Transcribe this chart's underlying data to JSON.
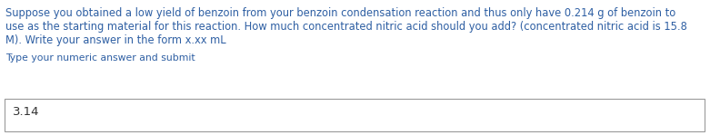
{
  "question_text_line1": "Suppose you obtained a low yield of benzoin from your benzoin condensation reaction and thus only have 0.214 g of benzoin to",
  "question_text_line2": "use as the starting material for this reaction. How much concentrated nitric acid should you add? (concentrated nitric acid is 15.8",
  "question_text_line3": "M). Write your answer in the form x.xx mL",
  "instruction_text": "Type your numeric answer and submit",
  "answer_text": "3.14",
  "question_color": "#2e5fa3",
  "instruction_color": "#2e5fa3",
  "answer_color": "#333333",
  "background_color": "#ffffff",
  "box_edge_color": "#999999",
  "question_fontsize": 8.3,
  "instruction_fontsize": 7.8,
  "answer_fontsize": 9.5
}
